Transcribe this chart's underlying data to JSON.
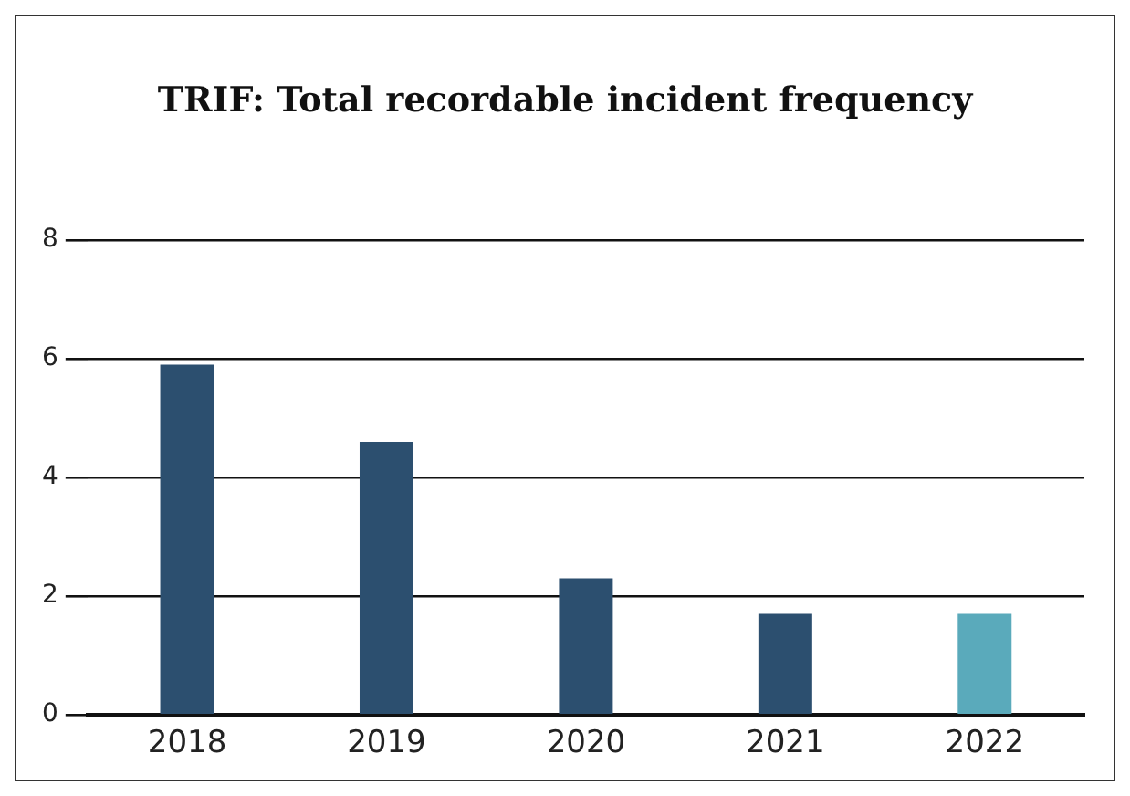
{
  "chart_data": {
    "type": "bar",
    "title": "TRIF: Total recordable incident frequency",
    "categories": [
      "2018",
      "2019",
      "2020",
      "2021",
      "2022"
    ],
    "values": [
      5.9,
      4.6,
      2.3,
      1.7,
      1.7
    ],
    "colors": [
      "#2c4f6f",
      "#2c4f6f",
      "#2c4f6f",
      "#2c4f6f",
      "#5aaabb"
    ],
    "ylim": [
      0,
      8
    ],
    "yticks": [
      0,
      2,
      4,
      6,
      8
    ],
    "grid": "y",
    "legend": false
  }
}
